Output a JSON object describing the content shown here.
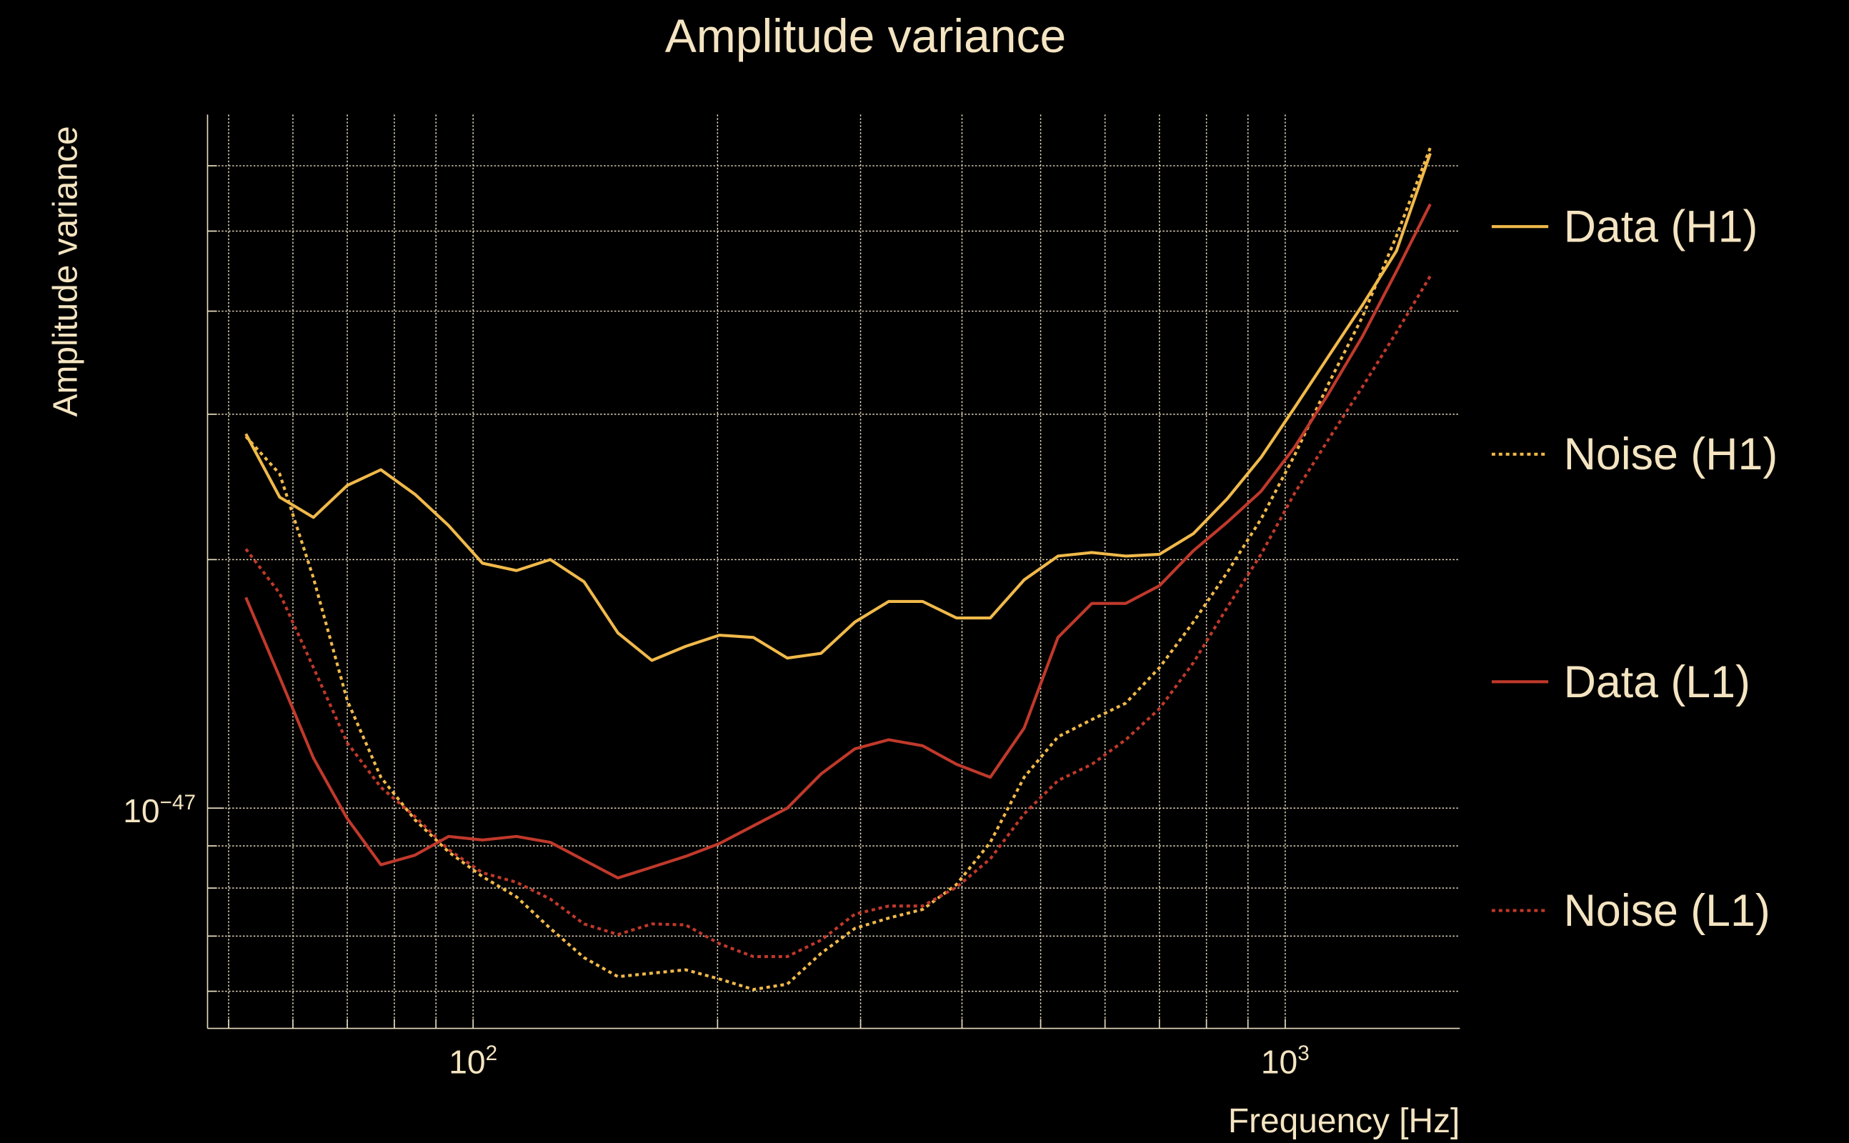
{
  "chart_data": {
    "type": "line",
    "title": "Amplitude variance",
    "xlabel": "Frequency [Hz]",
    "ylabel": "Amplitude variance",
    "xscale": "log",
    "yscale": "log",
    "xlim": [
      47.1,
      1641
    ],
    "ylim": [
      5.41e-48,
      6.92e-47
    ],
    "grid": true,
    "legend_position": "right-outside",
    "x_tick_labels": [
      {
        "base": "10",
        "exp": "2",
        "value": 100
      },
      {
        "base": "10",
        "exp": "3",
        "value": 1000
      }
    ],
    "y_tick_labels": [
      {
        "base": "10",
        "exp": "−47",
        "value": 1e-47
      }
    ],
    "x_grid": [
      50,
      60,
      70,
      80,
      90,
      100,
      200,
      300,
      400,
      500,
      600,
      700,
      800,
      900,
      1000
    ],
    "y_grid": [
      6e-48,
      7e-48,
      8e-48,
      9e-48,
      1e-47,
      2e-47,
      3e-47,
      4e-47,
      5e-47,
      6e-47
    ],
    "x": [
      52.5,
      57.8,
      63.6,
      70.0,
      77.0,
      84.8,
      93.3,
      102.7,
      113.1,
      124.5,
      137.0,
      150.8,
      166.0,
      182.7,
      201.1,
      221.4,
      243.7,
      268.2,
      295.2,
      325.0,
      357.7,
      393.7,
      433.4,
      477.0,
      525.1,
      578.0,
      636.2,
      700.3,
      770.8,
      848.4,
      933.9,
      1027.9,
      1131.4,
      1245.4,
      1370.8,
      1508.9
    ],
    "series": [
      {
        "name": "Data (H1)",
        "color": "#f0b94a",
        "style": "solid",
        "values": [
          2.84e-47,
          2.38e-47,
          2.25e-47,
          2.46e-47,
          2.57e-47,
          2.4e-47,
          2.2e-47,
          1.98e-47,
          1.94e-47,
          2e-47,
          1.88e-47,
          1.63e-47,
          1.51e-47,
          1.57e-47,
          1.62e-47,
          1.61e-47,
          1.52e-47,
          1.54e-47,
          1.68e-47,
          1.78e-47,
          1.78e-47,
          1.7e-47,
          1.7e-47,
          1.89e-47,
          2.02e-47,
          2.04e-47,
          2.02e-47,
          2.03e-47,
          2.15e-47,
          2.37e-47,
          2.66e-47,
          3.06e-47,
          3.53e-47,
          4.07e-47,
          4.73e-47,
          6.21e-47
        ]
      },
      {
        "name": "Noise (H1)",
        "color": "#f0b94a",
        "style": "dotted",
        "values": [
          2.82e-47,
          2.54e-47,
          1.9e-47,
          1.35e-47,
          1.09e-47,
          9.68e-48,
          8.85e-48,
          8.26e-48,
          7.81e-48,
          7.15e-48,
          6.59e-48,
          6.25e-48,
          6.31e-48,
          6.37e-48,
          6.21e-48,
          6.03e-48,
          6.12e-48,
          6.67e-48,
          7.15e-48,
          7.36e-48,
          7.54e-48,
          8.08e-48,
          9.09e-48,
          1.09e-47,
          1.22e-47,
          1.28e-47,
          1.34e-47,
          1.48e-47,
          1.68e-47,
          1.93e-47,
          2.24e-47,
          2.68e-47,
          3.27e-47,
          3.94e-47,
          4.93e-47,
          6.31e-47
        ]
      },
      {
        "name": "Data (L1)",
        "color": "#c0392b",
        "style": "solid",
        "values": [
          1.8e-47,
          1.44e-47,
          1.15e-47,
          9.71e-48,
          8.54e-48,
          8.77e-48,
          9.24e-48,
          9.15e-48,
          9.24e-48,
          9.09e-48,
          8.65e-48,
          8.23e-48,
          8.48e-48,
          8.74e-48,
          9.06e-48,
          9.52e-48,
          1e-47,
          1.1e-47,
          1.18e-47,
          1.21e-47,
          1.19e-47,
          1.13e-47,
          1.09e-47,
          1.25e-47,
          1.61e-47,
          1.77e-47,
          1.77e-47,
          1.86e-47,
          2.05e-47,
          2.22e-47,
          2.42e-47,
          2.74e-47,
          3.18e-47,
          3.73e-47,
          4.47e-47,
          5.39e-47
        ]
      },
      {
        "name": "Noise (L1)",
        "color": "#c0392b",
        "style": "dotted",
        "values": [
          2.06e-47,
          1.82e-47,
          1.48e-47,
          1.2e-47,
          1.06e-47,
          9.77e-48,
          8.91e-48,
          8.35e-48,
          8.13e-48,
          7.76e-48,
          7.24e-48,
          7.03e-48,
          7.24e-48,
          7.22e-48,
          6.85e-48,
          6.61e-48,
          6.61e-48,
          6.92e-48,
          7.44e-48,
          7.61e-48,
          7.61e-48,
          8.02e-48,
          8.68e-48,
          9.84e-48,
          1.08e-47,
          1.13e-47,
          1.21e-47,
          1.32e-47,
          1.5e-47,
          1.75e-47,
          2.03e-47,
          2.41e-47,
          2.8e-47,
          3.24e-47,
          3.77e-47,
          4.41e-47
        ]
      }
    ]
  }
}
